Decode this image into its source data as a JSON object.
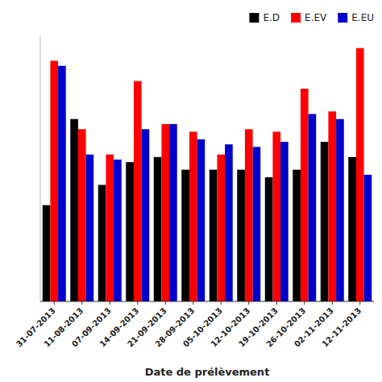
{
  "chart_data": {
    "type": "bar",
    "x_label": "Date de prélèvement",
    "categories": [
      "31-07-2013",
      "11-08-2013",
      "07-09-2013",
      "14-09-2013",
      "21-09-2013",
      "28-09-2013",
      "05-10-2013",
      "12-10-2013",
      "19-10-2013",
      "26-10-2013",
      "02-11-2013",
      "12-11-2013"
    ],
    "series": [
      {
        "name": "E.D",
        "color": "#000000",
        "values": [
          0.38,
          0.72,
          0.46,
          0.55,
          0.57,
          0.52,
          0.52,
          0.52,
          0.49,
          0.52,
          0.63,
          0.57
        ]
      },
      {
        "name": "E.EV",
        "color": "#ff0000",
        "values": [
          0.95,
          0.68,
          0.58,
          0.87,
          0.7,
          0.67,
          0.58,
          0.68,
          0.67,
          0.84,
          0.75,
          1.0
        ]
      },
      {
        "name": "E.EU",
        "color": "#0000cc",
        "values": [
          0.93,
          0.58,
          0.56,
          0.68,
          0.7,
          0.64,
          0.62,
          0.61,
          0.63,
          0.74,
          0.72,
          0.5
        ]
      }
    ],
    "ylim": [
      0,
      1.05
    ],
    "tick_labels": "x",
    "grid": false,
    "legend": "upper right"
  }
}
